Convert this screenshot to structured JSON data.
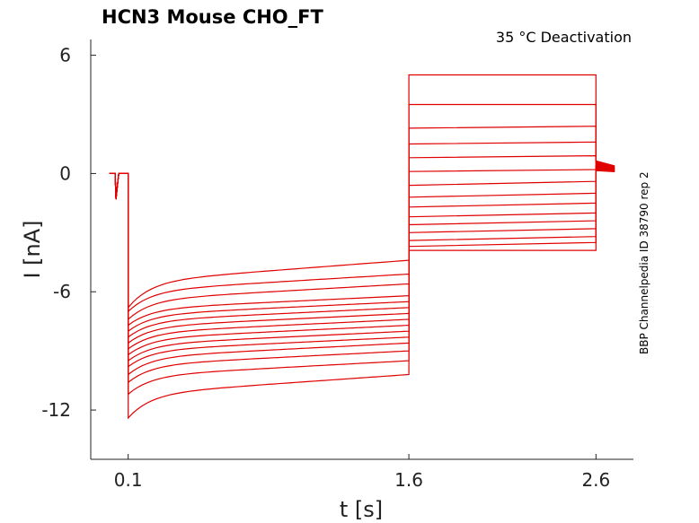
{
  "chart_data": {
    "type": "line",
    "title": "HCN3  Mouse  CHO_FT",
    "subtitle": "35 °C  Deactivation",
    "side_label": "BBP Channelpedia ID 38790 rep 2",
    "xlabel": "t [s]",
    "ylabel": "I [nA]",
    "xlim": [
      -0.1,
      2.8
    ],
    "ylim": [
      -14.5,
      6.8
    ],
    "xticks": [
      0.1,
      1.6,
      2.6
    ],
    "xtick_labels": [
      "0.1",
      "1.6",
      "2.6"
    ],
    "yticks": [
      6,
      0,
      -6,
      -12
    ],
    "ytick_labels": [
      "6",
      "0",
      "-6",
      "-12"
    ],
    "color": "#e00000",
    "grid": false,
    "protocol": {
      "prepulse_start": 0.0,
      "step1_start": 0.1,
      "step2_start": 1.6,
      "step2_end": 2.6,
      "x_end": 2.7
    },
    "series": [
      {
        "p1_peak": -12.4,
        "p1_end": -10.2,
        "p2_start": -3.9,
        "p2_end": -3.9
      },
      {
        "p1_peak": -11.2,
        "p1_end": -9.5,
        "p2_start": -3.7,
        "p2_end": -3.5
      },
      {
        "p1_peak": -10.6,
        "p1_end": -9.0,
        "p2_start": -3.4,
        "p2_end": -3.2
      },
      {
        "p1_peak": -10.2,
        "p1_end": -8.6,
        "p2_start": -3.0,
        "p2_end": -2.8
      },
      {
        "p1_peak": -9.8,
        "p1_end": -8.3,
        "p2_start": -2.6,
        "p2_end": -2.4
      },
      {
        "p1_peak": -9.5,
        "p1_end": -8.0,
        "p2_start": -2.2,
        "p2_end": -2.0
      },
      {
        "p1_peak": -9.2,
        "p1_end": -7.7,
        "p2_start": -1.7,
        "p2_end": -1.5
      },
      {
        "p1_peak": -8.9,
        "p1_end": -7.4,
        "p2_start": -1.2,
        "p2_end": -1.0
      },
      {
        "p1_peak": -8.6,
        "p1_end": -7.1,
        "p2_start": -0.6,
        "p2_end": -0.4
      },
      {
        "p1_peak": -8.3,
        "p1_end": -6.8,
        "p2_start": 0.1,
        "p2_end": 0.2
      },
      {
        "p1_peak": -8.0,
        "p1_end": -6.5,
        "p2_start": 0.8,
        "p2_end": 0.9
      },
      {
        "p1_peak": -7.7,
        "p1_end": -6.2,
        "p2_start": 1.5,
        "p2_end": 1.6
      },
      {
        "p1_peak": -7.4,
        "p1_end": -5.6,
        "p2_start": 2.3,
        "p2_end": 2.4
      },
      {
        "p1_peak": -7.0,
        "p1_end": -5.1,
        "p2_start": 3.5,
        "p2_end": 3.5
      },
      {
        "p1_peak": -6.8,
        "p1_end": -4.4,
        "p2_start": 5.0,
        "p2_end": 5.0
      }
    ]
  }
}
